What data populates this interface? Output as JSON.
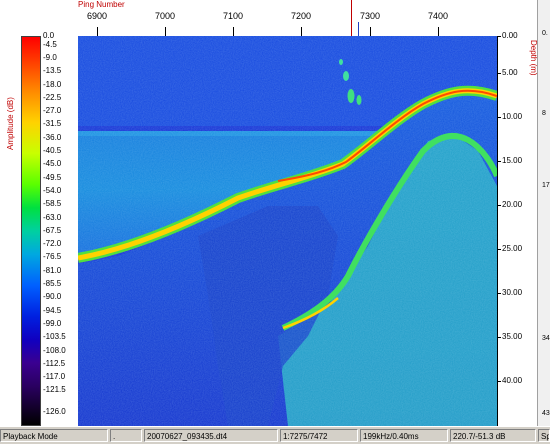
{
  "ping_axis": {
    "title": "Ping Number",
    "ticks": [
      "6900",
      "7000",
      "7100",
      "7200",
      "7300",
      "7400"
    ]
  },
  "amplitude_axis": {
    "label": "Amplitude (dB)",
    "ticks": [
      "0.0",
      "-4.5",
      "-9.0",
      "-13.5",
      "-18.0",
      "-22.5",
      "-27.0",
      "-31.5",
      "-36.0",
      "-40.5",
      "-45.0",
      "-49.5",
      "-54.0",
      "-58.5",
      "-63.0",
      "-67.5",
      "-72.0",
      "-76.5",
      "-81.0",
      "-85.5",
      "-90.0",
      "-94.5",
      "-99.0",
      "-103.5",
      "-108.0",
      "-112.5",
      "-117.0",
      "-121.5",
      "-126.0"
    ]
  },
  "depth_axis": {
    "label": "Depth (m)",
    "ticks": [
      "0.00",
      "5.00",
      "10.00",
      "15.00",
      "20.00",
      "25.00",
      "30.00",
      "35.00",
      "40.00"
    ]
  },
  "right_strip_ticks": [
    "0.",
    "8",
    "17",
    "34",
    "43"
  ],
  "status": {
    "mode": "Playback Mode",
    "sep": ".",
    "file": "20070627_093435.dt4",
    "ping": "1:7275/7472",
    "freq": "199kHz/0.40ms",
    "amp": "220.7/-51.3 dB",
    "extra": "Sp"
  },
  "colors": {
    "background_blue": "#1c3ad8",
    "water_cyan": "#1a9ce0",
    "bottom_echo": "#ffd200",
    "sub_bottom": "#40e060",
    "axis_title": "#c00000"
  }
}
